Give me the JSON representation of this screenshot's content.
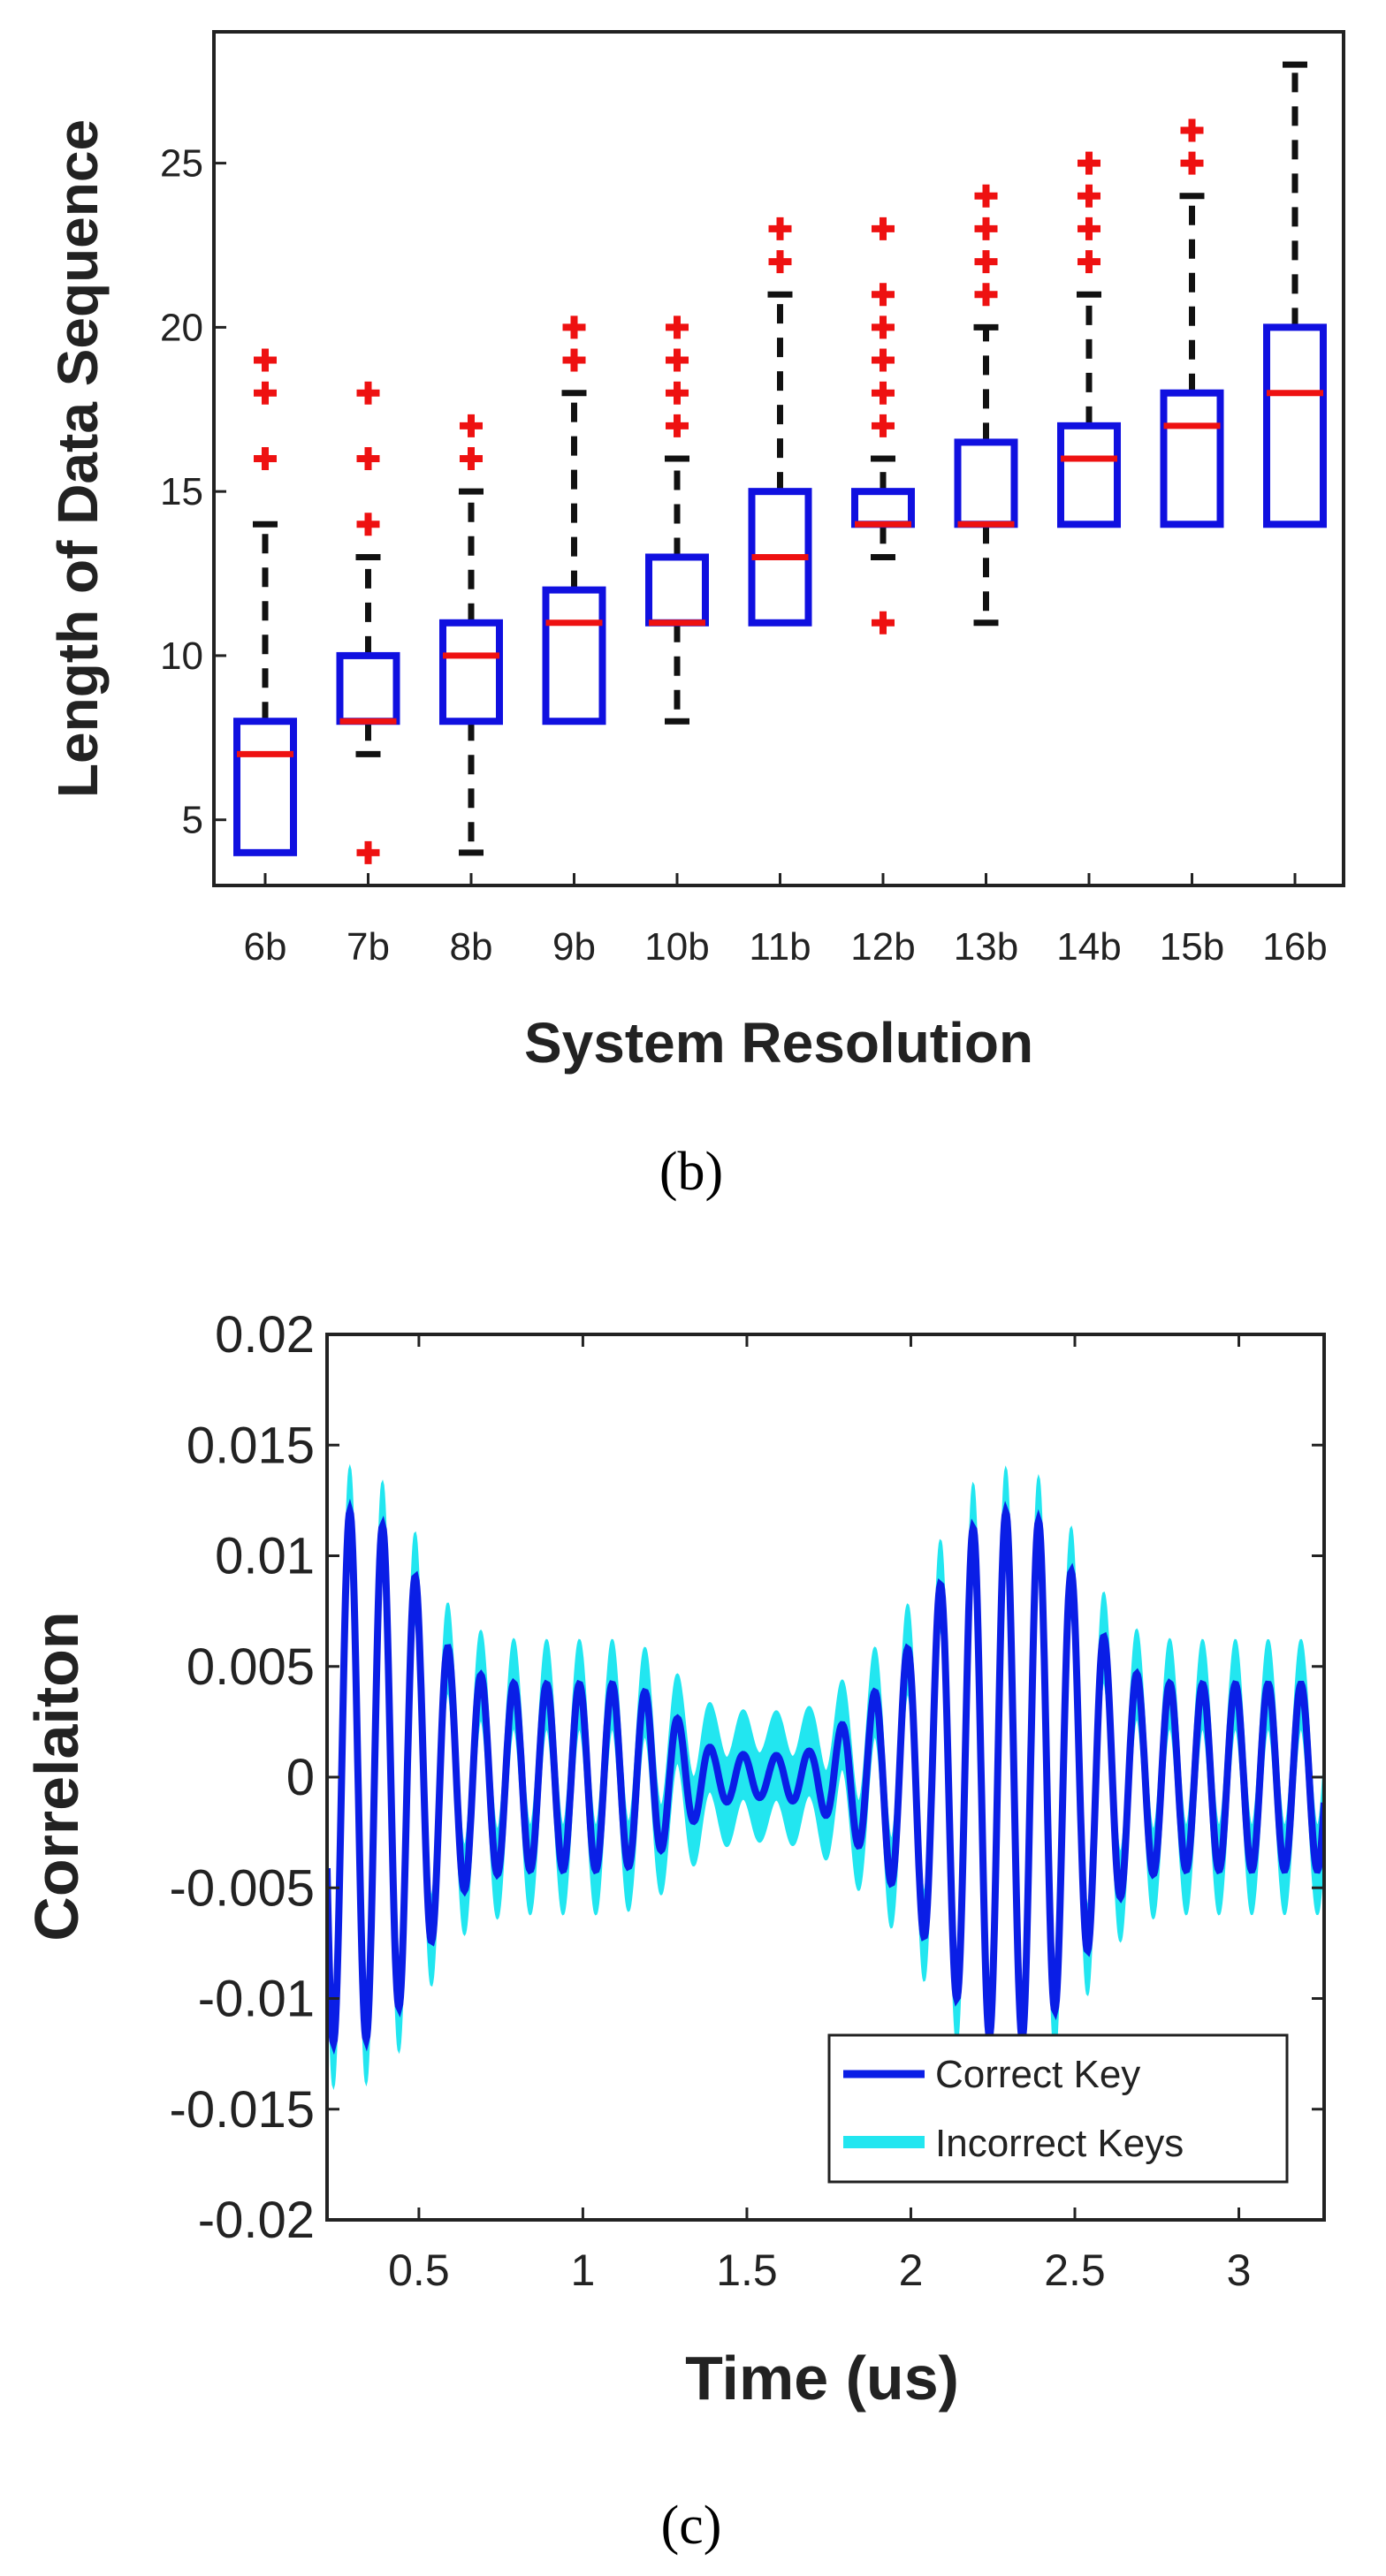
{
  "chart_data": [
    {
      "type": "box",
      "caption": "(b)",
      "xlabel": "System Resolution",
      "ylabel": "Length of Data Sequence",
      "ylim": [
        3,
        29
      ],
      "yticks": [
        5,
        10,
        15,
        20,
        25
      ],
      "categories": [
        "6b",
        "7b",
        "8b",
        "9b",
        "10b",
        "11b",
        "12b",
        "13b",
        "14b",
        "15b",
        "16b"
      ],
      "boxes": [
        {
          "q1": 4,
          "median": 7,
          "q3": 8,
          "whisker_low": 4,
          "whisker_high": 14,
          "outliers": [
            16,
            18,
            19
          ]
        },
        {
          "q1": 8,
          "median": 8,
          "q3": 10,
          "whisker_low": 7,
          "whisker_high": 13,
          "outliers": [
            4,
            14,
            16,
            18
          ]
        },
        {
          "q1": 8,
          "median": 10,
          "q3": 11,
          "whisker_low": 4,
          "whisker_high": 15,
          "outliers": [
            16,
            17
          ]
        },
        {
          "q1": 8,
          "median": 11,
          "q3": 12,
          "whisker_low": 8,
          "whisker_high": 18,
          "outliers": [
            19,
            20
          ]
        },
        {
          "q1": 11,
          "median": 11,
          "q3": 13,
          "whisker_low": 8,
          "whisker_high": 16,
          "outliers": [
            17,
            18,
            19,
            20
          ]
        },
        {
          "q1": 11,
          "median": 13,
          "q3": 15,
          "whisker_low": 11,
          "whisker_high": 21,
          "outliers": [
            22,
            23
          ]
        },
        {
          "q1": 14,
          "median": 14,
          "q3": 15,
          "whisker_low": 13,
          "whisker_high": 16,
          "outliers": [
            11,
            17,
            18,
            19,
            20,
            21,
            23
          ]
        },
        {
          "q1": 14,
          "median": 14,
          "q3": 16.5,
          "whisker_low": 11,
          "whisker_high": 20,
          "outliers": [
            21,
            22,
            23,
            24
          ]
        },
        {
          "q1": 14,
          "median": 16,
          "q3": 17,
          "whisker_low": 14,
          "whisker_high": 21,
          "outliers": [
            22,
            23,
            24,
            25
          ]
        },
        {
          "q1": 14,
          "median": 17,
          "q3": 18,
          "whisker_low": 14,
          "whisker_high": 24,
          "outliers": [
            25,
            26
          ]
        },
        {
          "q1": 14,
          "median": 18,
          "q3": 20,
          "whisker_low": 14,
          "whisker_high": 28,
          "outliers": []
        }
      ],
      "colors": {
        "box": "#1010e0",
        "median": "#ee1111",
        "whisker": "#111111",
        "outlier": "#ee1111"
      }
    },
    {
      "type": "line",
      "caption": "(c)",
      "xlabel": "Time (us)",
      "ylabel": "Correlaiton",
      "xlim": [
        0.22,
        3.26
      ],
      "ylim": [
        -0.02,
        0.02
      ],
      "xticks": [
        0.5,
        1,
        1.5,
        2,
        2.5,
        3
      ],
      "xtick_labels": [
        "0.5",
        "1",
        "1.5",
        "2",
        "2.5",
        "3"
      ],
      "yticks": [
        -0.02,
        -0.015,
        -0.01,
        -0.005,
        0,
        0.005,
        0.01,
        0.015,
        0.02
      ],
      "ytick_labels": [
        "-0.02",
        "-0.015",
        "-0.01",
        "-0.005",
        "0",
        "0.005",
        "0.01",
        "0.015",
        "0.02"
      ],
      "signal": {
        "period_us": 0.1,
        "phase_zero_us": 0.22,
        "envelope_t": [
          0.22,
          0.28,
          0.32,
          0.38,
          0.46,
          0.52,
          0.6,
          0.7,
          0.8,
          0.9,
          1.0,
          1.1,
          1.2,
          1.3,
          1.4,
          1.55,
          1.7,
          1.8,
          1.9,
          2.0,
          2.1,
          2.2,
          2.3,
          2.4,
          2.5,
          2.6,
          2.7,
          2.8,
          3.0,
          3.26
        ],
        "envelope_amp": [
          0.012,
          0.012,
          0.012,
          0.0115,
          0.01,
          0.008,
          0.0055,
          0.0045,
          0.0042,
          0.0042,
          0.0042,
          0.0042,
          0.0038,
          0.0025,
          0.0012,
          0.0009,
          0.0012,
          0.0025,
          0.004,
          0.006,
          0.009,
          0.0115,
          0.012,
          0.0115,
          0.009,
          0.006,
          0.0045,
          0.0042,
          0.0042,
          0.0042
        ],
        "incorrect_spread": 0.002
      },
      "series": [
        {
          "name": "Correct Key",
          "color": "#0a1ee6"
        },
        {
          "name": "Incorrect Keys",
          "color": "#22e6f0"
        }
      ],
      "legend": "bottom-right"
    }
  ]
}
